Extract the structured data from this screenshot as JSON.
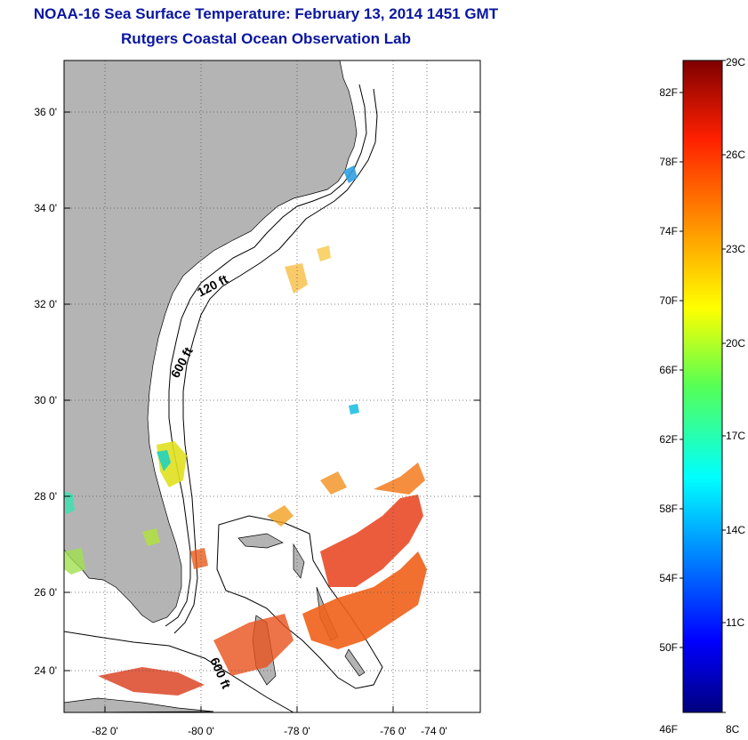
{
  "header": {
    "title": "NOAA-16 Sea Surface Temperature:  February 13, 2014 1451 GMT",
    "subtitle": "Rutgers Coastal Ocean Observation Lab"
  },
  "map": {
    "lon_ticks": [
      "-82 0'",
      "-80 0'",
      "-78 0'",
      "-76 0'",
      "-74 0'"
    ],
    "lat_ticks": [
      "36 0'",
      "34 0'",
      "32 0'",
      "30 0'",
      "28 0'",
      "26 0'",
      "24 0'"
    ],
    "lon_range": [
      -83,
      -72.3
    ],
    "lat_range": [
      23.0,
      37.0
    ],
    "grid": true,
    "land_color": "#b4b4b4",
    "ocean_color": "#ffffff",
    "contour_labels": [
      "120 ft",
      "600 ft",
      "600 ft"
    ]
  },
  "colorbar": {
    "fahrenheit_labels": [
      "82F",
      "78F",
      "74F",
      "70F",
      "66F",
      "62F",
      "58F",
      "54F",
      "50F",
      "46F"
    ],
    "celsius_labels": [
      "29C",
      "26C",
      "23C",
      "20C",
      "17C",
      "14C",
      "11C",
      "8C"
    ],
    "colormap": "jet",
    "range_c": [
      8,
      29
    ]
  }
}
